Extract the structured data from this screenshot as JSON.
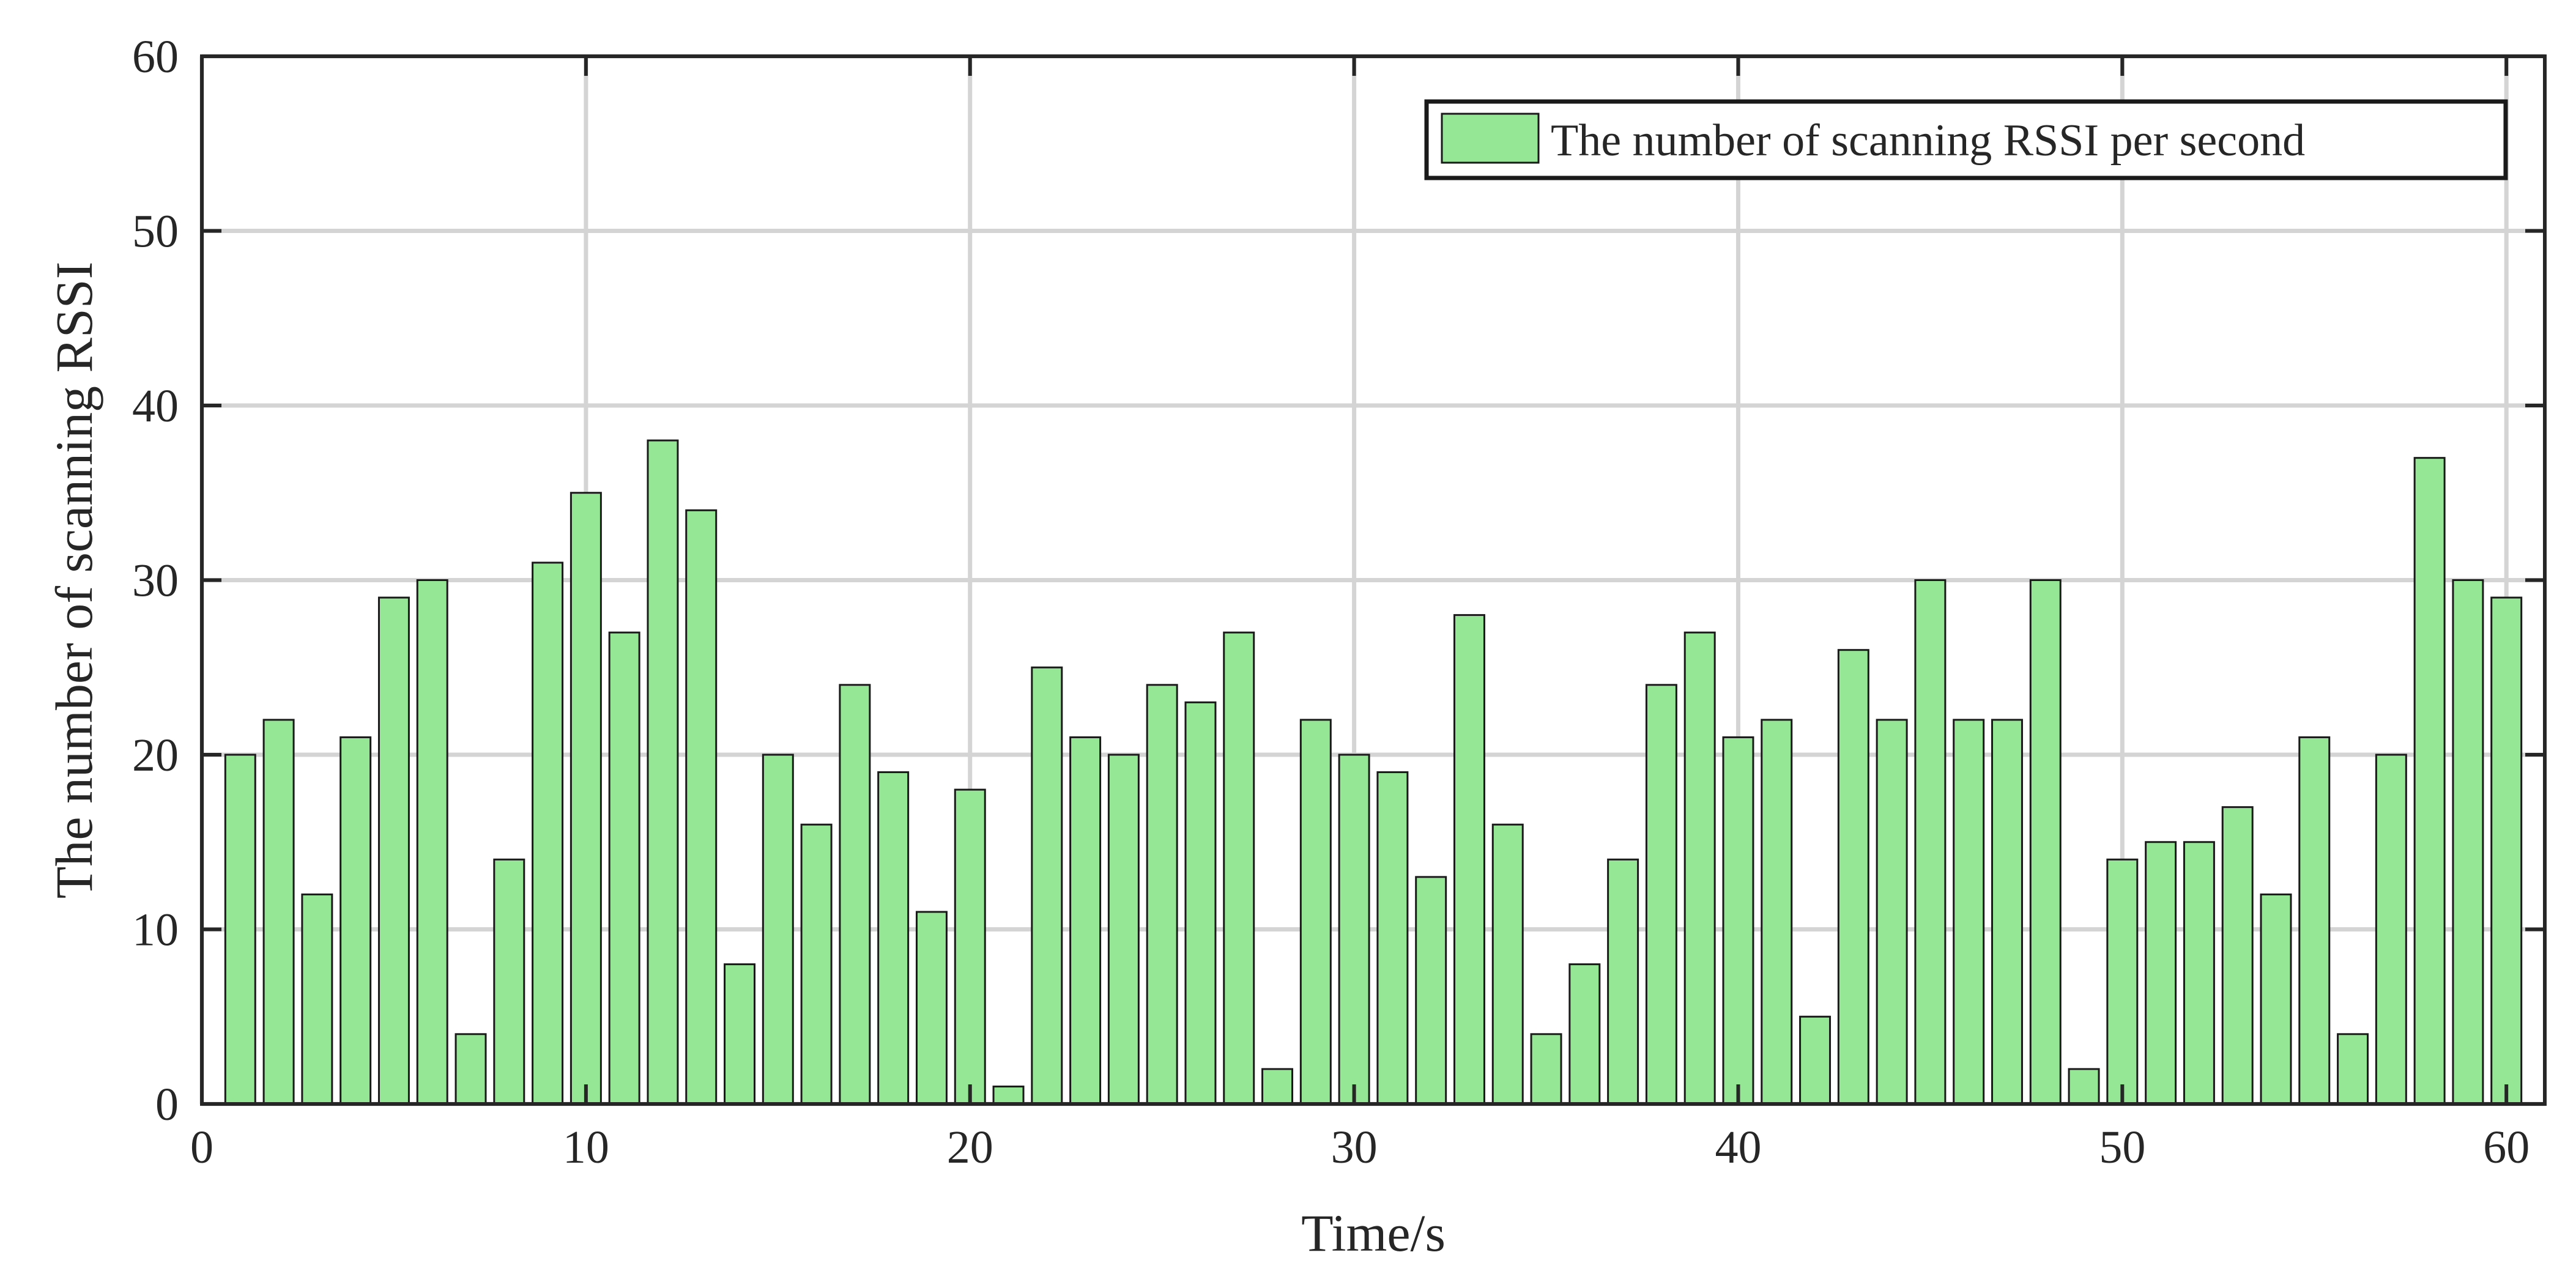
{
  "chart_data": {
    "type": "bar",
    "title": "",
    "xlabel": "Time/s",
    "ylabel": "The number of scanning RSSI",
    "xlim": [
      0,
      61
    ],
    "ylim": [
      0,
      60
    ],
    "xticks": [
      "0",
      "10",
      "20",
      "30",
      "40",
      "50",
      "60"
    ],
    "yticks": [
      "0",
      "10",
      "20",
      "30",
      "40",
      "50",
      "60"
    ],
    "grid": true,
    "legend_position": "top-right",
    "series": [
      {
        "name": "The number of scanning RSSI per second",
        "color": "#95e795",
        "x": [
          1,
          2,
          3,
          4,
          5,
          6,
          7,
          8,
          9,
          10,
          11,
          12,
          13,
          14,
          15,
          16,
          17,
          18,
          19,
          20,
          21,
          22,
          23,
          24,
          25,
          26,
          27,
          28,
          29,
          30,
          31,
          32,
          33,
          34,
          35,
          36,
          37,
          38,
          39,
          40,
          41,
          42,
          43,
          44,
          45,
          46,
          47,
          48,
          49,
          50,
          51,
          52,
          53,
          54,
          55,
          56,
          57,
          58,
          59,
          60
        ],
        "values": [
          20,
          22,
          12,
          21,
          29,
          30,
          4,
          14,
          31,
          35,
          27,
          38,
          34,
          8,
          20,
          16,
          24,
          19,
          11,
          18,
          1,
          25,
          21,
          20,
          24,
          23,
          27,
          2,
          22,
          20,
          19,
          13,
          28,
          16,
          4,
          8,
          14,
          24,
          27,
          21,
          22,
          5,
          26,
          22,
          30,
          22,
          22,
          30,
          2,
          14,
          15,
          15,
          17,
          12,
          21,
          4,
          20,
          37,
          30,
          29
        ]
      }
    ]
  }
}
